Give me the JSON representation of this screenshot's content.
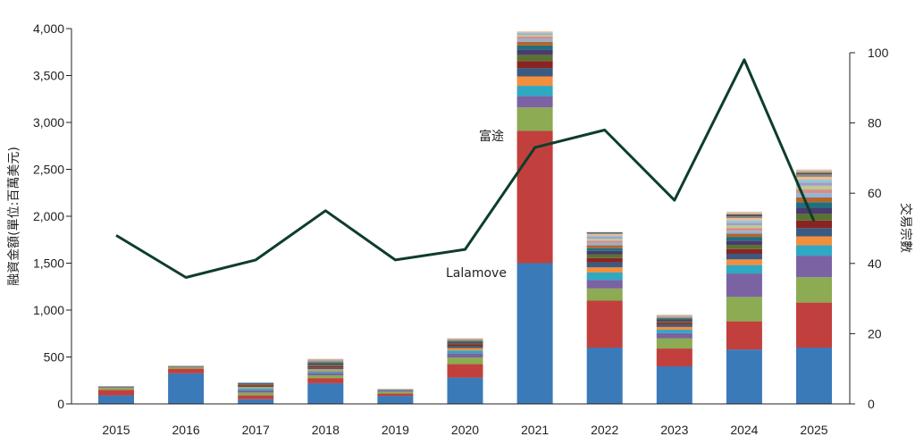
{
  "chart_data": {
    "type": "bar",
    "categories": [
      "2015",
      "2016",
      "2017",
      "2018",
      "2019",
      "2020",
      "2021",
      "2022",
      "2023",
      "2024",
      "2025"
    ],
    "left_axis": {
      "label": "融資金額(單位:百萬美元)",
      "ylim": [
        0,
        4000
      ],
      "ticks": [
        0,
        500,
        1000,
        1500,
        2000,
        2500,
        3000,
        3500,
        4000
      ]
    },
    "right_axis": {
      "label": "交易宗數",
      "ylim": [
        0,
        100
      ],
      "ticks": [
        0,
        20,
        40,
        60,
        80,
        100
      ]
    },
    "stacked": true,
    "grid": false,
    "stack_colors": [
      "#3b7ab8",
      "#c1403d",
      "#8cab52",
      "#7b62a2",
      "#2fa8c4",
      "#f38e3c",
      "#3c5a80",
      "#8a2421",
      "#5a7232",
      "#4a3a6e",
      "#1f6f7f",
      "#b5652a",
      "#8fb5d9",
      "#d98c8a",
      "#b8cc94",
      "#a999c6",
      "#86ccd9",
      "#f5b98a",
      "#888888",
      "#555555",
      "#c8a97e",
      "#e3c7c0"
    ],
    "bar_segments": [
      [
        90,
        60,
        20,
        10,
        5,
        5
      ],
      [
        325,
        50,
        20,
        10
      ],
      [
        50,
        40,
        30,
        25,
        20,
        15,
        12,
        10,
        8,
        8,
        7
      ],
      [
        220,
        55,
        30,
        25,
        20,
        20,
        18,
        15,
        15,
        12,
        12,
        10,
        10,
        10,
        8
      ],
      [
        85,
        25,
        20,
        15,
        10,
        5
      ],
      [
        280,
        145,
        70,
        45,
        30,
        25,
        20,
        18,
        15,
        12,
        10,
        10,
        8,
        7,
        5
      ],
      [
        1500,
        1410,
        250,
        120,
        110,
        100,
        90,
        75,
        65,
        55,
        45,
        40,
        30,
        25,
        20,
        15,
        10,
        10
      ],
      [
        600,
        500,
        130,
        90,
        80,
        55,
        55,
        45,
        40,
        35,
        30,
        30,
        25,
        25,
        20,
        20,
        15,
        15,
        10,
        10
      ],
      [
        400,
        190,
        110,
        55,
        35,
        30,
        25,
        20,
        15,
        15,
        15,
        10,
        10,
        10,
        10
      ],
      [
        580,
        300,
        260,
        250,
        90,
        60,
        60,
        50,
        45,
        45,
        40,
        35,
        30,
        30,
        30,
        25,
        25,
        25,
        20,
        20,
        15,
        15
      ],
      [
        600,
        480,
        270,
        230,
        110,
        95,
        90,
        80,
        70,
        65,
        60,
        50,
        45,
        40,
        40,
        35,
        30,
        30,
        25,
        20,
        20,
        15
      ]
    ],
    "line": {
      "name": "交易宗數",
      "color": "#0e3d2b",
      "values": [
        48,
        36,
        41,
        55,
        41,
        44,
        73,
        78,
        58,
        98,
        52
      ]
    },
    "annotations": [
      {
        "text": "富途",
        "anchor": "line-2021"
      },
      {
        "text": "Lalamove",
        "anchor": "bar-2021-segment-0"
      }
    ]
  }
}
